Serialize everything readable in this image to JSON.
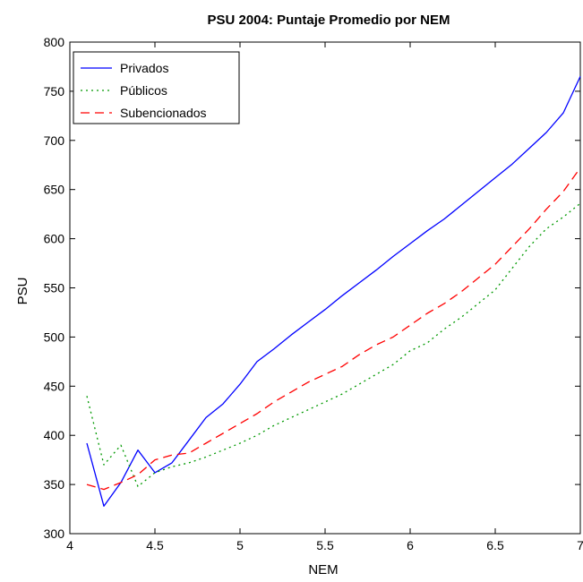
{
  "chart_data": {
    "type": "line",
    "title": "PSU 2004: Puntaje Promedio por NEM",
    "xlabel": "NEM",
    "ylabel": "PSU",
    "xlim": [
      4,
      7
    ],
    "ylim": [
      300,
      800
    ],
    "xticks": [
      4,
      4.5,
      5,
      5.5,
      6,
      6.5,
      7
    ],
    "xtick_labels": [
      "4",
      "4.5",
      "5",
      "5.5",
      "6",
      "6.5",
      "7"
    ],
    "yticks": [
      300,
      350,
      400,
      450,
      500,
      550,
      600,
      650,
      700,
      750,
      800
    ],
    "ytick_labels": [
      "300",
      "350",
      "400",
      "450",
      "500",
      "550",
      "600",
      "650",
      "700",
      "750",
      "800"
    ],
    "grid": false,
    "legend_position": "top-left",
    "series": [
      {
        "name": "Privados",
        "color": "#0000ff",
        "style": "solid",
        "x": [
          4.1,
          4.2,
          4.3,
          4.4,
          4.5,
          4.6,
          4.7,
          4.8,
          4.9,
          5.0,
          5.1,
          5.2,
          5.3,
          5.4,
          5.5,
          5.6,
          5.7,
          5.8,
          5.9,
          6.0,
          6.1,
          6.2,
          6.3,
          6.4,
          6.5,
          6.6,
          6.7,
          6.8,
          6.9,
          7.0
        ],
        "y": [
          392,
          328,
          352,
          385,
          362,
          372,
          395,
          418,
          432,
          452,
          475,
          488,
          502,
          515,
          528,
          542,
          555,
          568,
          582,
          595,
          608,
          620,
          634,
          648,
          662,
          676,
          692,
          708,
          728,
          765
        ]
      },
      {
        "name": "Públicos",
        "color": "#009900",
        "style": "dotted",
        "x": [
          4.1,
          4.2,
          4.3,
          4.4,
          4.5,
          4.6,
          4.7,
          4.8,
          4.9,
          5.0,
          5.1,
          5.2,
          5.3,
          5.4,
          5.5,
          5.6,
          5.7,
          5.8,
          5.9,
          6.0,
          6.1,
          6.2,
          6.3,
          6.4,
          6.5,
          6.6,
          6.7,
          6.8,
          6.9,
          7.0
        ],
        "y": [
          440,
          370,
          390,
          348,
          362,
          368,
          372,
          378,
          385,
          392,
          400,
          410,
          418,
          426,
          434,
          442,
          452,
          462,
          472,
          486,
          494,
          508,
          520,
          534,
          548,
          570,
          592,
          610,
          622,
          636
        ]
      },
      {
        "name": "Subencionados",
        "color": "#ff0000",
        "style": "dashed",
        "x": [
          4.1,
          4.2,
          4.3,
          4.4,
          4.5,
          4.6,
          4.7,
          4.8,
          4.9,
          5.0,
          5.1,
          5.2,
          5.3,
          5.4,
          5.5,
          5.6,
          5.7,
          5.8,
          5.9,
          6.0,
          6.1,
          6.2,
          6.3,
          6.4,
          6.5,
          6.6,
          6.7,
          6.8,
          6.9,
          7.0
        ],
        "y": [
          350,
          345,
          352,
          360,
          375,
          380,
          382,
          392,
          402,
          412,
          422,
          434,
          444,
          454,
          462,
          470,
          482,
          492,
          500,
          512,
          524,
          534,
          546,
          560,
          574,
          592,
          610,
          630,
          648,
          672
        ]
      }
    ]
  }
}
